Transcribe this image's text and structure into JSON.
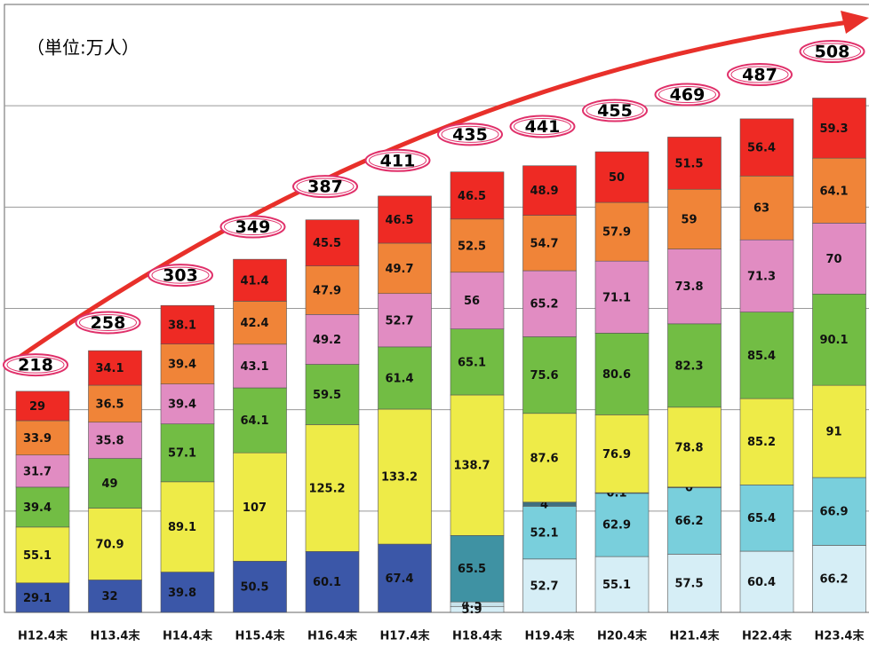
{
  "chart_data": {
    "type": "stacked_bar",
    "unit_label": "（単位:万人）",
    "categories": [
      "H12.4末",
      "H13.4末",
      "H14.4末",
      "H15.4末",
      "H16.4末",
      "H17.4末",
      "H18.4末",
      "H19.4末",
      "H20.4末",
      "H21.4末",
      "H22.4末",
      "H23.4末"
    ],
    "series": [
      {
        "color": "#d6eef6",
        "values": [
          null,
          null,
          null,
          null,
          null,
          null,
          5.9,
          52.7,
          55.1,
          57.5,
          60.4,
          66.2
        ]
      },
      {
        "color": "#3b57a8",
        "values": [
          29.1,
          32,
          39.8,
          50.5,
          60.1,
          67.4,
          null,
          null,
          null,
          null,
          null,
          null
        ]
      },
      {
        "color": "#c8e3ec",
        "values": [
          null,
          null,
          null,
          null,
          null,
          null,
          4.5,
          null,
          null,
          null,
          null,
          null
        ]
      },
      {
        "color": "#3f92a3",
        "values": [
          null,
          null,
          null,
          null,
          null,
          null,
          65.5,
          null,
          null,
          null,
          null,
          null
        ]
      },
      {
        "color": "#79cfdc",
        "values": [
          null,
          null,
          null,
          null,
          null,
          null,
          null,
          52.1,
          62.9,
          66.2,
          65.4,
          66.9
        ]
      },
      {
        "color": "#3f6f80",
        "values": [
          null,
          null,
          null,
          null,
          null,
          null,
          null,
          4,
          0.1,
          0,
          null,
          null
        ]
      },
      {
        "color": "#eeeb48",
        "values": [
          55.1,
          70.9,
          89.1,
          107,
          125.2,
          133.2,
          138.7,
          87.6,
          76.9,
          78.8,
          85.2,
          91
        ]
      },
      {
        "color": "#72bd44",
        "values": [
          39.4,
          49,
          57.1,
          64.1,
          59.5,
          61.4,
          65.1,
          75.6,
          80.6,
          82.3,
          85.4,
          90.1
        ]
      },
      {
        "color": "#e18cc2",
        "values": [
          31.7,
          35.8,
          39.4,
          43.1,
          49.2,
          52.7,
          56,
          65.2,
          71.1,
          73.8,
          71.3,
          70
        ]
      },
      {
        "color": "#f08438",
        "values": [
          33.9,
          36.5,
          39.4,
          42.4,
          47.9,
          49.7,
          52.5,
          54.7,
          57.9,
          59,
          63,
          64.1
        ]
      },
      {
        "color": "#ee2a24",
        "values": [
          29,
          34.1,
          38.1,
          41.4,
          45.5,
          46.5,
          46.5,
          48.9,
          50,
          51.5,
          56.4,
          59.3
        ]
      }
    ],
    "totals": [
      218,
      258,
      303,
      349,
      387,
      411,
      435,
      441,
      455,
      469,
      487,
      508
    ],
    "ylim": [
      0,
      600
    ],
    "yticks": [
      100,
      200,
      300,
      400,
      500
    ],
    "grid": true
  }
}
